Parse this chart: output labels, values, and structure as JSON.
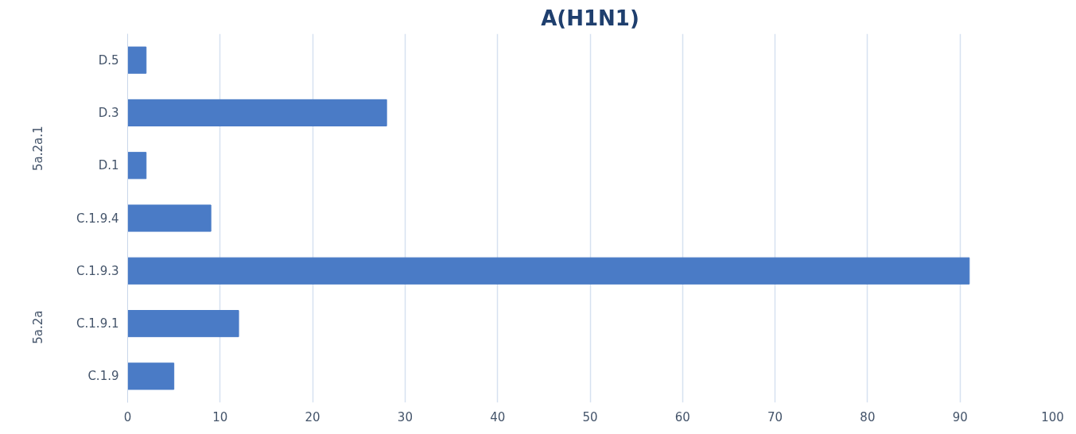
{
  "chart_data": {
    "type": "bar",
    "orientation": "horizontal",
    "title": "A(H1N1)",
    "categories": [
      "D.5",
      "D.3",
      "D.1",
      "C.1.9.4",
      "C.1.9.3",
      "C.1.9.1",
      "C.1.9"
    ],
    "values": [
      2,
      28,
      2,
      9,
      91,
      12,
      5
    ],
    "color": "#4a7bc6",
    "xlim": [
      0,
      100
    ],
    "xticks": [
      0,
      10,
      20,
      30,
      40,
      50,
      60,
      70,
      80,
      90,
      100
    ],
    "grid": "x",
    "annotations": [
      "5a.2a.1",
      "5a.2a"
    ]
  }
}
